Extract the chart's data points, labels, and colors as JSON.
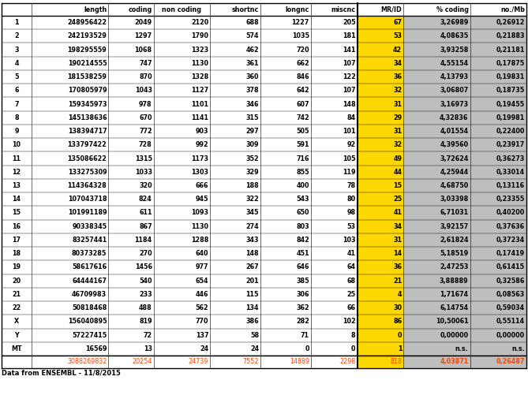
{
  "rows": [
    {
      "chr": "1",
      "length": "248956422",
      "coding": "2049",
      "non_coding": "2120",
      "shortnc": "688",
      "longnc": "1227",
      "miscnc": "205",
      "mr_id": "67",
      "pct_coding": "3,26989",
      "no_mb": "0,26912"
    },
    {
      "chr": "2",
      "length": "242193529",
      "coding": "1297",
      "non_coding": "1790",
      "shortnc": "574",
      "longnc": "1035",
      "miscnc": "181",
      "mr_id": "53",
      "pct_coding": "4,08635",
      "no_mb": "0,21883"
    },
    {
      "chr": "3",
      "length": "198295559",
      "coding": "1068",
      "non_coding": "1323",
      "shortnc": "462",
      "longnc": "720",
      "miscnc": "141",
      "mr_id": "42",
      "pct_coding": "3,93258",
      "no_mb": "0,21181"
    },
    {
      "chr": "4",
      "length": "190214555",
      "coding": "747",
      "non_coding": "1130",
      "shortnc": "361",
      "longnc": "662",
      "miscnc": "107",
      "mr_id": "34",
      "pct_coding": "4,55154",
      "no_mb": "0,17875"
    },
    {
      "chr": "5",
      "length": "181538259",
      "coding": "870",
      "non_coding": "1328",
      "shortnc": "360",
      "longnc": "846",
      "miscnc": "122",
      "mr_id": "36",
      "pct_coding": "4,13793",
      "no_mb": "0,19831"
    },
    {
      "chr": "6",
      "length": "170805979",
      "coding": "1043",
      "non_coding": "1127",
      "shortnc": "378",
      "longnc": "642",
      "miscnc": "107",
      "mr_id": "32",
      "pct_coding": "3,06807",
      "no_mb": "0,18735"
    },
    {
      "chr": "7",
      "length": "159345973",
      "coding": "978",
      "non_coding": "1101",
      "shortnc": "346",
      "longnc": "607",
      "miscnc": "148",
      "mr_id": "31",
      "pct_coding": "3,16973",
      "no_mb": "0,19455"
    },
    {
      "chr": "8",
      "length": "145138636",
      "coding": "670",
      "non_coding": "1141",
      "shortnc": "315",
      "longnc": "742",
      "miscnc": "84",
      "mr_id": "29",
      "pct_coding": "4,32836",
      "no_mb": "0,19981"
    },
    {
      "chr": "9",
      "length": "138394717",
      "coding": "772",
      "non_coding": "903",
      "shortnc": "297",
      "longnc": "505",
      "miscnc": "101",
      "mr_id": "31",
      "pct_coding": "4,01554",
      "no_mb": "0,22400"
    },
    {
      "chr": "10",
      "length": "133797422",
      "coding": "728",
      "non_coding": "992",
      "shortnc": "309",
      "longnc": "591",
      "miscnc": "92",
      "mr_id": "32",
      "pct_coding": "4,39560",
      "no_mb": "0,23917"
    },
    {
      "chr": "11",
      "length": "135086622",
      "coding": "1315",
      "non_coding": "1173",
      "shortnc": "352",
      "longnc": "716",
      "miscnc": "105",
      "mr_id": "49",
      "pct_coding": "3,72624",
      "no_mb": "0,36273"
    },
    {
      "chr": "12",
      "length": "133275309",
      "coding": "1033",
      "non_coding": "1303",
      "shortnc": "329",
      "longnc": "855",
      "miscnc": "119",
      "mr_id": "44",
      "pct_coding": "4,25944",
      "no_mb": "0,33014"
    },
    {
      "chr": "13",
      "length": "114364328",
      "coding": "320",
      "non_coding": "666",
      "shortnc": "188",
      "longnc": "400",
      "miscnc": "78",
      "mr_id": "15",
      "pct_coding": "4,68750",
      "no_mb": "0,13116"
    },
    {
      "chr": "14",
      "length": "107043718",
      "coding": "824",
      "non_coding": "945",
      "shortnc": "322",
      "longnc": "543",
      "miscnc": "80",
      "mr_id": "25",
      "pct_coding": "3,03398",
      "no_mb": "0,23355"
    },
    {
      "chr": "15",
      "length": "101991189",
      "coding": "611",
      "non_coding": "1093",
      "shortnc": "345",
      "longnc": "650",
      "miscnc": "98",
      "mr_id": "41",
      "pct_coding": "6,71031",
      "no_mb": "0,40200"
    },
    {
      "chr": "16",
      "length": "90338345",
      "coding": "867",
      "non_coding": "1130",
      "shortnc": "274",
      "longnc": "803",
      "miscnc": "53",
      "mr_id": "34",
      "pct_coding": "3,92157",
      "no_mb": "0,37636"
    },
    {
      "chr": "17",
      "length": "83257441",
      "coding": "1184",
      "non_coding": "1288",
      "shortnc": "343",
      "longnc": "842",
      "miscnc": "103",
      "mr_id": "31",
      "pct_coding": "2,61824",
      "no_mb": "0,37234"
    },
    {
      "chr": "18",
      "length": "80373285",
      "coding": "270",
      "non_coding": "640",
      "shortnc": "148",
      "longnc": "451",
      "miscnc": "41",
      "mr_id": "14",
      "pct_coding": "5,18519",
      "no_mb": "0,17419"
    },
    {
      "chr": "19",
      "length": "58617616",
      "coding": "1456",
      "non_coding": "977",
      "shortnc": "267",
      "longnc": "646",
      "miscnc": "64",
      "mr_id": "36",
      "pct_coding": "2,47253",
      "no_mb": "0,61415"
    },
    {
      "chr": "20",
      "length": "64444167",
      "coding": "540",
      "non_coding": "654",
      "shortnc": "201",
      "longnc": "385",
      "miscnc": "68",
      "mr_id": "21",
      "pct_coding": "3,88889",
      "no_mb": "0,32586"
    },
    {
      "chr": "21",
      "length": "46709983",
      "coding": "233",
      "non_coding": "446",
      "shortnc": "115",
      "longnc": "306",
      "miscnc": "25",
      "mr_id": "4",
      "pct_coding": "1,71674",
      "no_mb": "0,08563"
    },
    {
      "chr": "22",
      "length": "50818468",
      "coding": "488",
      "non_coding": "562",
      "shortnc": "134",
      "longnc": "362",
      "miscnc": "66",
      "mr_id": "30",
      "pct_coding": "6,14754",
      "no_mb": "0,59034"
    },
    {
      "chr": "X",
      "length": "156040895",
      "coding": "819",
      "non_coding": "770",
      "shortnc": "386",
      "longnc": "282",
      "miscnc": "102",
      "mr_id": "86",
      "pct_coding": "10,50061",
      "no_mb": "0,55114"
    },
    {
      "chr": "Y",
      "length": "57227415",
      "coding": "72",
      "non_coding": "137",
      "shortnc": "58",
      "longnc": "71",
      "miscnc": "8",
      "mr_id": "0",
      "pct_coding": "0,00000",
      "no_mb": "0,00000"
    },
    {
      "chr": "MT",
      "length": "16569",
      "coding": "13",
      "non_coding": "24",
      "shortnc": "24",
      "longnc": "0",
      "miscnc": "0",
      "mr_id": "1",
      "pct_coding": "n.s.",
      "no_mb": "n.s."
    }
  ],
  "totals": {
    "length": "3088269832",
    "coding": "20254",
    "non_coding": "24739",
    "shortnc": "7552",
    "longnc": "14889",
    "miscnc": "2298",
    "mr_id": "818",
    "pct_coding": "4,03871",
    "no_mb": "0,26487"
  },
  "yellow_bg": "#FFD700",
  "grey_bg": "#BEBEBE",
  "total_color": "#FF4500",
  "footer_text": "Data from ENSEMBL - 11/8/2015",
  "bold_chr": [
    "1",
    "2",
    "3",
    "4",
    "5",
    "6",
    "7",
    "8",
    "9",
    "10",
    "11",
    "12",
    "13",
    "14",
    "15",
    "16",
    "17",
    "18",
    "19",
    "20",
    "21",
    "22",
    "X",
    "Y",
    "MT"
  ],
  "extra_bold_chr": [
    "X"
  ],
  "note_rows": [
    "MT"
  ],
  "col_headers": [
    "",
    "length",
    "coding",
    "non coding",
    "shortnc",
    "longnc",
    "miscnc",
    "MR/ID",
    "% coding",
    "no./Mb"
  ],
  "fig_width": 6.69,
  "fig_height": 5.01,
  "dpi": 100
}
